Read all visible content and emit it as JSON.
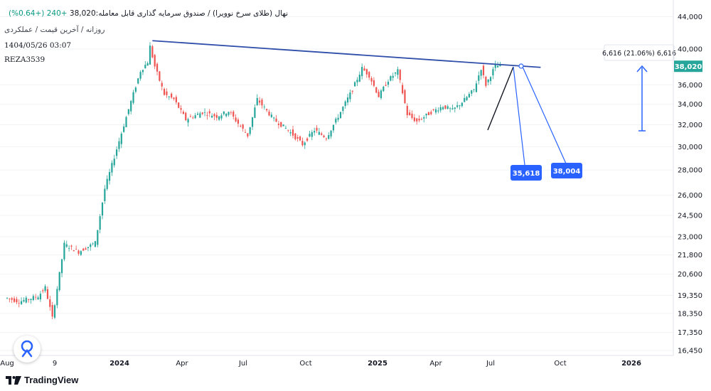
{
  "header": {
    "title": "نهال (طلای سرخ نوویرا) / صندوق سرمایه گذاری قابل معامله",
    "last_price": "38,020",
    "change": "+240 (+0.64%)",
    "subtitle": "روزانه / آخرین قیمت / عملکردی",
    "date": "1404/05/26 03:07",
    "user": "REZA3539"
  },
  "brand": {
    "name": "TradingView"
  },
  "colors": {
    "up": "#26a69a",
    "down": "#ef5350",
    "trendline": "#2f4ea9",
    "measure": "#2962ff",
    "price_tag": "#26a69a"
  },
  "chart_data": {
    "type": "candlestick",
    "yscale": "log",
    "ylim": [
      16000,
      45000
    ],
    "y_ticks": [
      "44,000",
      "40,000",
      "36,000",
      "34,000",
      "32,000",
      "30,000",
      "28,000",
      "26,000",
      "24,500",
      "23,000",
      "21,800",
      "20,600",
      "19,350",
      "18,350",
      "17,350",
      "16,450"
    ],
    "x_ticks": [
      "Aug",
      "9",
      "2024",
      "Apr",
      "Jul",
      "Oct",
      "2025",
      "Apr",
      "Jul",
      "Oct",
      "2026"
    ],
    "path": [
      [
        0,
        19200
      ],
      [
        5,
        19000
      ],
      [
        13,
        19300
      ],
      [
        16,
        19800
      ],
      [
        19,
        18100
      ],
      [
        24,
        22500
      ],
      [
        30,
        22000
      ],
      [
        37,
        22600
      ],
      [
        41,
        26500
      ],
      [
        47,
        30500
      ],
      [
        51,
        33500
      ],
      [
        56,
        37500
      ],
      [
        59,
        38500
      ],
      [
        60,
        40300
      ],
      [
        62,
        38000
      ],
      [
        66,
        35000
      ],
      [
        70,
        34500
      ],
      [
        75,
        32500
      ],
      [
        82,
        33200
      ],
      [
        88,
        32800
      ],
      [
        93,
        33300
      ],
      [
        101,
        31000
      ],
      [
        105,
        34500
      ],
      [
        112,
        32500
      ],
      [
        118,
        31500
      ],
      [
        124,
        30200
      ],
      [
        129,
        31500
      ],
      [
        134,
        30800
      ],
      [
        139,
        32800
      ],
      [
        145,
        35500
      ],
      [
        149,
        37800
      ],
      [
        152,
        37000
      ],
      [
        156,
        34800
      ],
      [
        160,
        36500
      ],
      [
        164,
        37500
      ],
      [
        168,
        33000
      ],
      [
        172,
        32300
      ],
      [
        178,
        33200
      ],
      [
        183,
        33800
      ],
      [
        187,
        33400
      ],
      [
        191,
        34200
      ],
      [
        196,
        35500
      ],
      [
        199,
        37800
      ],
      [
        201,
        36000
      ],
      [
        205,
        38100
      ],
      [
        207,
        38020
      ]
    ],
    "last_price": "38,020",
    "trendline": {
      "start": [
        61,
        41000
      ],
      "end": [
        224,
        37900
      ]
    },
    "annotations": {
      "measure_label": "6,616 (21.06%) 6,616",
      "callouts": [
        "35,618",
        "38,004"
      ]
    }
  }
}
